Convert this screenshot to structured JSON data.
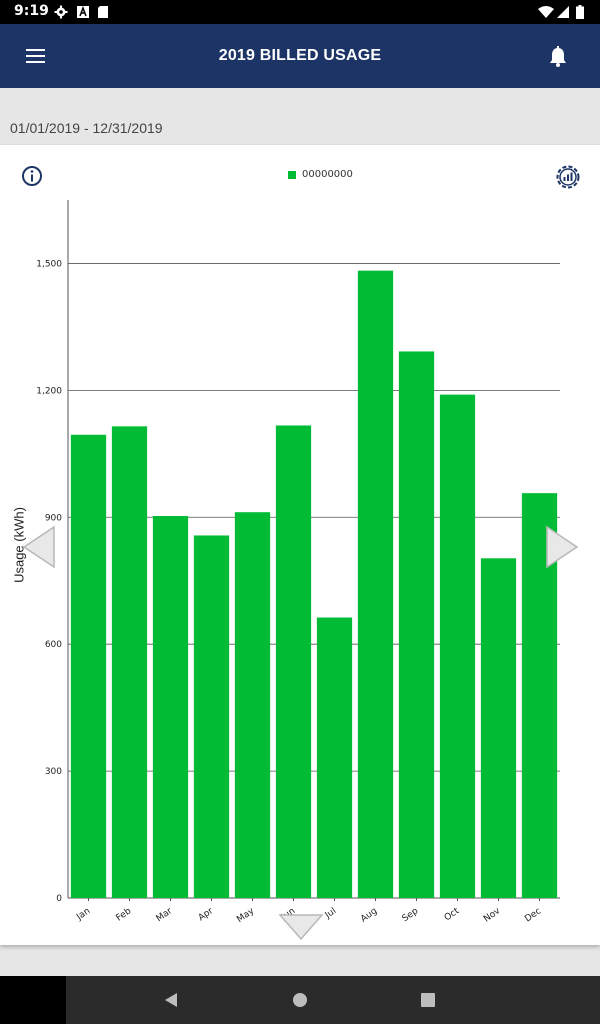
{
  "status_bar": {
    "time": "9:19",
    "left_icons": [
      "gear-icon",
      "a-box-icon",
      "sd-card-icon"
    ],
    "right_icons": [
      "wifi-icon",
      "signal-icon",
      "battery-icon"
    ]
  },
  "app_bar": {
    "title": "2019 BILLED USAGE",
    "menu_icon": "hamburger-menu-icon",
    "notification_icon": "bell-icon"
  },
  "date_range": "01/01/2019 - 12/31/2019",
  "legend": {
    "label": "00000000",
    "color": "#00bb33"
  },
  "colors": {
    "app_bar": "#1d3566",
    "bar": "#00bb33"
  },
  "chart_data": {
    "type": "bar",
    "title": "",
    "xlabel": "",
    "ylabel": "Usage (kWh)",
    "ylim": [
      0,
      1650
    ],
    "yticks": [
      0,
      300,
      600,
      900,
      1200,
      1500
    ],
    "ytick_labels": [
      "0",
      "300",
      "600",
      "900",
      "1,200",
      "1,500"
    ],
    "categories": [
      "Jan",
      "Feb",
      "Mar",
      "Apr",
      "May",
      "Jun",
      "Jul",
      "Aug",
      "Sep",
      "Oct",
      "Nov",
      "Dec"
    ],
    "series": [
      {
        "name": "00000000",
        "values": [
          1095,
          1115,
          903,
          857,
          912,
          1117,
          663,
          1483,
          1292,
          1190,
          803,
          957
        ]
      }
    ],
    "grid": true,
    "legend_position": "top-center"
  },
  "bottom_nav": {
    "icons": [
      "back-icon",
      "home-icon",
      "recents-icon"
    ]
  }
}
